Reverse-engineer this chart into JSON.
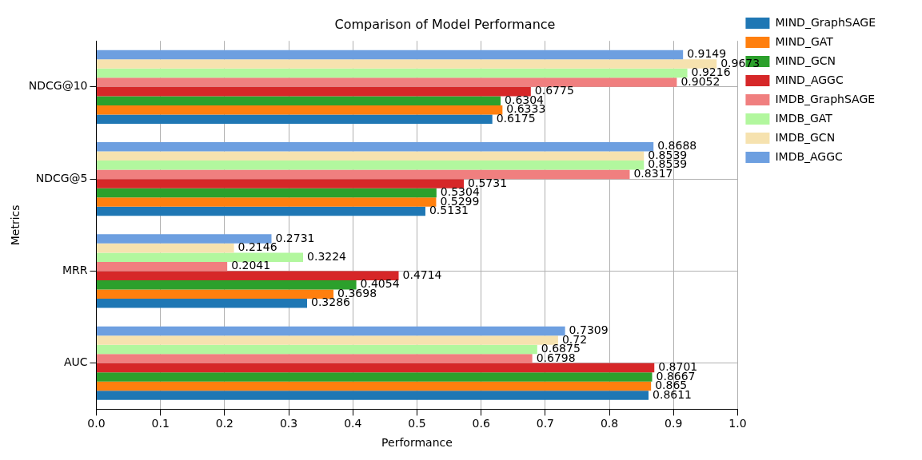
{
  "chart_data": {
    "type": "bar",
    "orientation": "horizontal",
    "title": "Comparison of Model Performance",
    "xlabel": "Performance",
    "ylabel": "Metrics",
    "categories": [
      "NDCG@10",
      "NDCG@5",
      "MRR",
      "AUC"
    ],
    "series": [
      {
        "name": "MIND_GraphSAGE",
        "color": "#1f77b4",
        "values": [
          0.6175,
          0.5131,
          0.3286,
          0.8611
        ]
      },
      {
        "name": "MIND_GAT",
        "color": "#ff7f0e",
        "values": [
          0.6333,
          0.5299,
          0.3698,
          0.865
        ]
      },
      {
        "name": "MIND_GCN",
        "color": "#2ca02c",
        "values": [
          0.6304,
          0.5304,
          0.4054,
          0.8667
        ]
      },
      {
        "name": "MIND_AGGC",
        "color": "#d62728",
        "values": [
          0.6775,
          0.5731,
          0.4714,
          0.8701
        ]
      },
      {
        "name": "IMDB_GraphSAGE",
        "color": "#f07f7f",
        "values": [
          0.9052,
          0.8317,
          0.2041,
          0.6798
        ]
      },
      {
        "name": "IMDB_GAT",
        "color": "#b2f79e",
        "values": [
          0.9216,
          0.8539,
          0.3224,
          0.6875
        ]
      },
      {
        "name": "IMDB_GCN",
        "color": "#f6e2af",
        "values": [
          0.9673,
          0.8539,
          0.2146,
          0.72
        ]
      },
      {
        "name": "IMDB_AGGC",
        "color": "#6d9fe0",
        "values": [
          0.9149,
          0.8688,
          0.2731,
          0.7309
        ]
      }
    ],
    "xlim": [
      0,
      1
    ],
    "xticks": [
      {
        "value": 0,
        "label": "0.0"
      },
      0.1,
      0.2,
      0.3,
      0.4,
      0.5,
      0.6,
      0.7,
      0.8,
      0.9,
      {
        "value": 1,
        "label": "1.0"
      }
    ],
    "grid": true,
    "legend": "top right",
    "data_labels": true
  }
}
